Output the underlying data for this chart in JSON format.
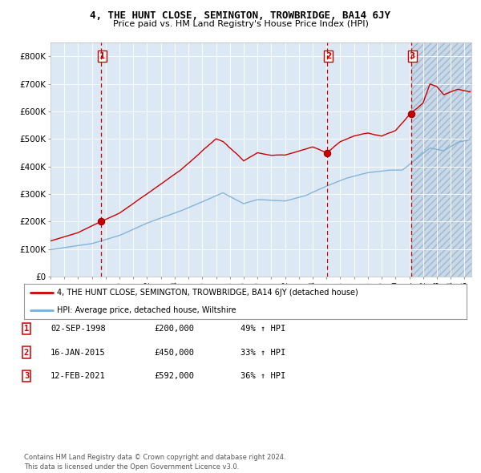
{
  "title": "4, THE HUNT CLOSE, SEMINGTON, TROWBRIDGE, BA14 6JY",
  "subtitle": "Price paid vs. HM Land Registry's House Price Index (HPI)",
  "bg_color": "#dce9f5",
  "red_line_color": "#cc0000",
  "blue_line_color": "#7aafd4",
  "sale_marker_color": "#cc0000",
  "dashed_line_color": "#cc0000",
  "ylim": [
    0,
    850000
  ],
  "yticks": [
    0,
    100000,
    200000,
    300000,
    400000,
    500000,
    600000,
    700000,
    800000
  ],
  "ytick_labels": [
    "£0",
    "£100K",
    "£200K",
    "£300K",
    "£400K",
    "£500K",
    "£600K",
    "£700K",
    "£800K"
  ],
  "xlim_start": 1995.0,
  "xlim_end": 2025.5,
  "sales": [
    {
      "label": "1",
      "date_num": 1998.67,
      "price": 200000
    },
    {
      "label": "2",
      "date_num": 2015.04,
      "price": 450000
    },
    {
      "label": "3",
      "date_num": 2021.12,
      "price": 592000
    }
  ],
  "legend_red": "4, THE HUNT CLOSE, SEMINGTON, TROWBRIDGE, BA14 6JY (detached house)",
  "legend_blue": "HPI: Average price, detached house, Wiltshire",
  "table_rows": [
    {
      "num": "1",
      "date": "02-SEP-1998",
      "price": "£200,000",
      "hpi": "49% ↑ HPI"
    },
    {
      "num": "2",
      "date": "16-JAN-2015",
      "price": "£450,000",
      "hpi": "33% ↑ HPI"
    },
    {
      "num": "3",
      "date": "12-FEB-2021",
      "price": "£592,000",
      "hpi": "36% ↑ HPI"
    }
  ],
  "footer": "Contains HM Land Registry data © Crown copyright and database right 2024.\nThis data is licensed under the Open Government Licence v3.0."
}
